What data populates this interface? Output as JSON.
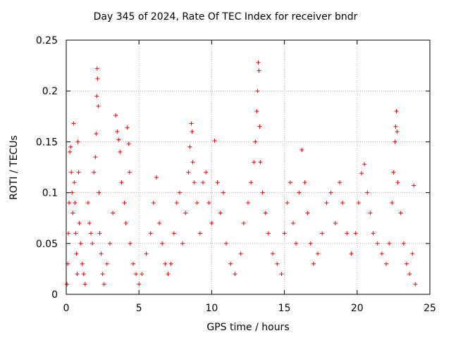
{
  "chart_data": {
    "type": "scatter",
    "title": "Day 345 of 2024, Rate Of TEC Index for receiver bndr",
    "xlabel": "GPS time / hours",
    "ylabel": "ROTI / TECUs",
    "xlim": [
      0,
      25
    ],
    "ylim": [
      0,
      0.25
    ],
    "xticks": [
      0,
      5,
      10,
      15,
      20,
      25
    ],
    "yticks": [
      0,
      0.05,
      0.1,
      0.15,
      0.2,
      0.25
    ],
    "xtick_labels": [
      "0",
      "5",
      "10",
      "15",
      "20",
      "25"
    ],
    "ytick_labels": [
      "0",
      "0.05",
      "0.1",
      "0.15",
      "0.2",
      "0.25"
    ],
    "grid": true,
    "marker": "+",
    "marker_color": "#ff0000",
    "series": [
      {
        "name": "ROTI",
        "points": [
          [
            0.05,
            0.01
          ],
          [
            0.1,
            0.03
          ],
          [
            0.15,
            0.06
          ],
          [
            0.2,
            0.09
          ],
          [
            0.25,
            0.14
          ],
          [
            0.3,
            0.145
          ],
          [
            0.35,
            0.12
          ],
          [
            0.4,
            0.1
          ],
          [
            0.45,
            0.08
          ],
          [
            0.5,
            0.168
          ],
          [
            0.55,
            0.11
          ],
          [
            0.6,
            0.09
          ],
          [
            0.65,
            0.06
          ],
          [
            0.7,
            0.04
          ],
          [
            0.75,
            0.02
          ],
          [
            0.8,
            0.15
          ],
          [
            0.85,
            0.12
          ],
          [
            0.9,
            0.07
          ],
          [
            1.0,
            0.05
          ],
          [
            1.1,
            0.03
          ],
          [
            1.2,
            0.02
          ],
          [
            1.3,
            0.01
          ],
          [
            1.5,
            0.09
          ],
          [
            1.6,
            0.07
          ],
          [
            1.7,
            0.06
          ],
          [
            1.8,
            0.05
          ],
          [
            1.9,
            0.12
          ],
          [
            2.0,
            0.135
          ],
          [
            2.05,
            0.158
          ],
          [
            2.1,
            0.195
          ],
          [
            2.12,
            0.222
          ],
          [
            2.15,
            0.212
          ],
          [
            2.2,
            0.185
          ],
          [
            2.25,
            0.1
          ],
          [
            2.3,
            0.06
          ],
          [
            2.4,
            0.04
          ],
          [
            2.5,
            0.02
          ],
          [
            2.6,
            0.01
          ],
          [
            2.8,
            0.03
          ],
          [
            3.0,
            0.05
          ],
          [
            3.2,
            0.08
          ],
          [
            3.4,
            0.176
          ],
          [
            3.5,
            0.16
          ],
          [
            3.6,
            0.152
          ],
          [
            3.7,
            0.14
          ],
          [
            3.8,
            0.11
          ],
          [
            4.0,
            0.09
          ],
          [
            4.1,
            0.07
          ],
          [
            4.2,
            0.164
          ],
          [
            4.3,
            0.148
          ],
          [
            4.35,
            0.12
          ],
          [
            4.4,
            0.05
          ],
          [
            4.6,
            0.03
          ],
          [
            4.8,
            0.02
          ],
          [
            5.0,
            0.01
          ],
          [
            5.2,
            0.02
          ],
          [
            5.5,
            0.04
          ],
          [
            5.8,
            0.06
          ],
          [
            6.0,
            0.09
          ],
          [
            6.2,
            0.115
          ],
          [
            6.4,
            0.07
          ],
          [
            6.6,
            0.05
          ],
          [
            6.8,
            0.03
          ],
          [
            7.0,
            0.02
          ],
          [
            7.2,
            0.03
          ],
          [
            7.4,
            0.06
          ],
          [
            7.6,
            0.09
          ],
          [
            7.8,
            0.1
          ],
          [
            8.0,
            0.05
          ],
          [
            8.2,
            0.08
          ],
          [
            8.4,
            0.12
          ],
          [
            8.5,
            0.145
          ],
          [
            8.6,
            0.168
          ],
          [
            8.65,
            0.16
          ],
          [
            8.7,
            0.13
          ],
          [
            8.8,
            0.11
          ],
          [
            9.0,
            0.09
          ],
          [
            9.2,
            0.06
          ],
          [
            9.4,
            0.11
          ],
          [
            9.6,
            0.12
          ],
          [
            9.8,
            0.09
          ],
          [
            10.0,
            0.07
          ],
          [
            10.2,
            0.151
          ],
          [
            10.4,
            0.11
          ],
          [
            10.6,
            0.08
          ],
          [
            10.8,
            0.1
          ],
          [
            11.0,
            0.05
          ],
          [
            11.3,
            0.03
          ],
          [
            11.6,
            0.02
          ],
          [
            12.0,
            0.04
          ],
          [
            12.2,
            0.07
          ],
          [
            12.5,
            0.09
          ],
          [
            12.7,
            0.11
          ],
          [
            12.9,
            0.13
          ],
          [
            13.0,
            0.15
          ],
          [
            13.1,
            0.18
          ],
          [
            13.15,
            0.2
          ],
          [
            13.2,
            0.228
          ],
          [
            13.25,
            0.22
          ],
          [
            13.3,
            0.165
          ],
          [
            13.35,
            0.13
          ],
          [
            13.5,
            0.1
          ],
          [
            13.7,
            0.08
          ],
          [
            13.9,
            0.06
          ],
          [
            14.2,
            0.04
          ],
          [
            14.5,
            0.03
          ],
          [
            14.8,
            0.02
          ],
          [
            15.0,
            0.06
          ],
          [
            15.2,
            0.09
          ],
          [
            15.4,
            0.11
          ],
          [
            15.6,
            0.07
          ],
          [
            15.8,
            0.05
          ],
          [
            16.0,
            0.1
          ],
          [
            16.2,
            0.142
          ],
          [
            16.4,
            0.11
          ],
          [
            16.6,
            0.08
          ],
          [
            16.8,
            0.05
          ],
          [
            17.0,
            0.03
          ],
          [
            17.3,
            0.04
          ],
          [
            17.6,
            0.06
          ],
          [
            17.9,
            0.09
          ],
          [
            18.2,
            0.1
          ],
          [
            18.5,
            0.07
          ],
          [
            18.8,
            0.11
          ],
          [
            19.0,
            0.09
          ],
          [
            19.3,
            0.06
          ],
          [
            19.6,
            0.04
          ],
          [
            19.9,
            0.06
          ],
          [
            20.1,
            0.09
          ],
          [
            20.3,
            0.119
          ],
          [
            20.5,
            0.128
          ],
          [
            20.7,
            0.1
          ],
          [
            20.9,
            0.08
          ],
          [
            21.1,
            0.06
          ],
          [
            21.4,
            0.05
          ],
          [
            21.7,
            0.04
          ],
          [
            22.0,
            0.03
          ],
          [
            22.2,
            0.05
          ],
          [
            22.4,
            0.09
          ],
          [
            22.5,
            0.12
          ],
          [
            22.6,
            0.15
          ],
          [
            22.65,
            0.165
          ],
          [
            22.7,
            0.18
          ],
          [
            22.75,
            0.16
          ],
          [
            22.8,
            0.11
          ],
          [
            23.0,
            0.08
          ],
          [
            23.2,
            0.05
          ],
          [
            23.4,
            0.03
          ],
          [
            23.6,
            0.02
          ],
          [
            23.8,
            0.04
          ],
          [
            23.9,
            0.107
          ],
          [
            24.0,
            0.01
          ]
        ]
      }
    ]
  }
}
